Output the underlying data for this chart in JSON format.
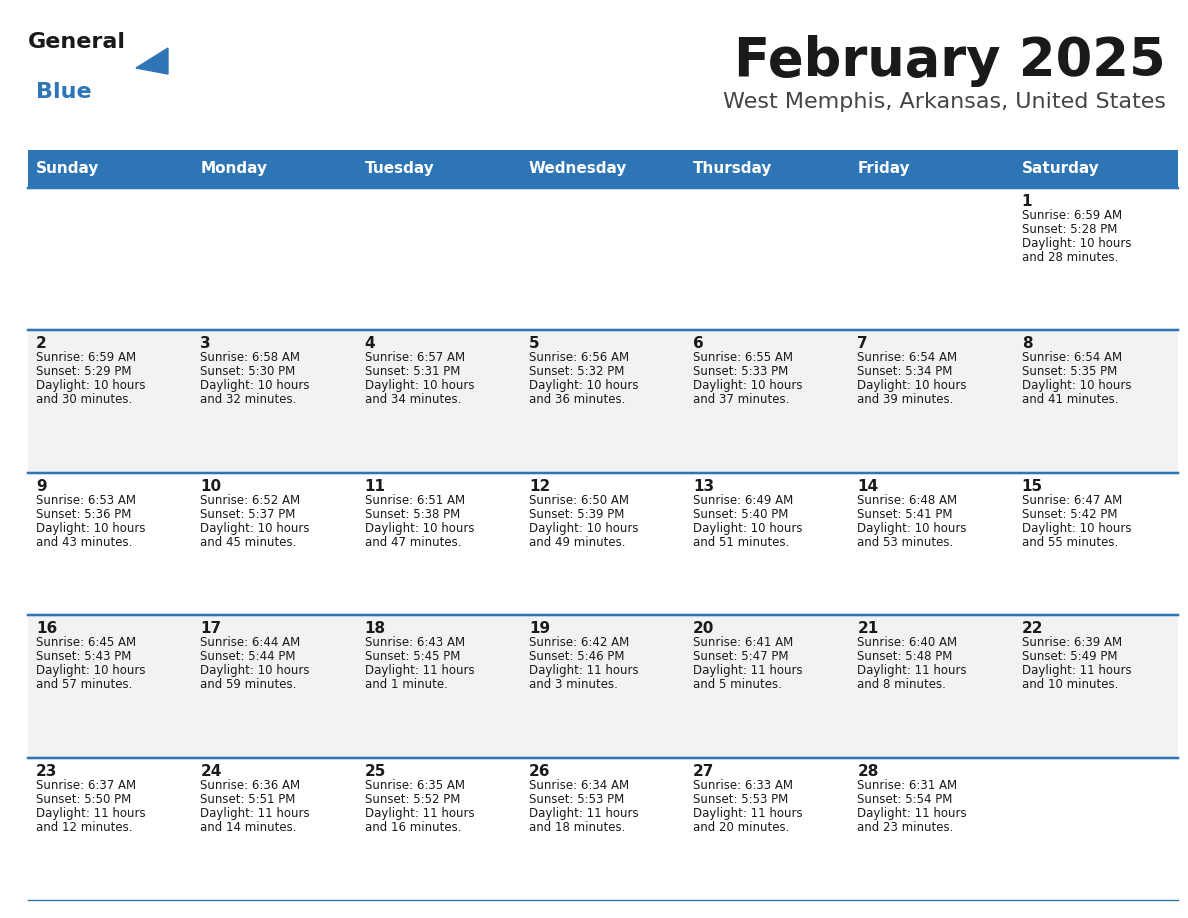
{
  "title": "February 2025",
  "subtitle": "West Memphis, Arkansas, United States",
  "header_color": "#2E75B6",
  "header_text_color": "#FFFFFF",
  "day_names": [
    "Sunday",
    "Monday",
    "Tuesday",
    "Wednesday",
    "Thursday",
    "Friday",
    "Saturday"
  ],
  "bg_color_odd": "#FFFFFF",
  "bg_color_even": "#F2F2F2",
  "line_color": "#2E75B6",
  "title_color": "#1a1a1a",
  "subtitle_color": "#444444",
  "day_number_color": "#1a1a1a",
  "text_color": "#1a1a1a",
  "logo_general_color": "#1a1a1a",
  "logo_blue_color": "#2E75B6",
  "logo_triangle_color": "#2E75B6",
  "calendar": [
    [
      null,
      null,
      null,
      null,
      null,
      null,
      {
        "day": "1",
        "sunrise": "6:59 AM",
        "sunset": "5:28 PM",
        "daylight": "10 hours",
        "daylight2": "and 28 minutes."
      }
    ],
    [
      {
        "day": "2",
        "sunrise": "6:59 AM",
        "sunset": "5:29 PM",
        "daylight": "10 hours",
        "daylight2": "and 30 minutes."
      },
      {
        "day": "3",
        "sunrise": "6:58 AM",
        "sunset": "5:30 PM",
        "daylight": "10 hours",
        "daylight2": "and 32 minutes."
      },
      {
        "day": "4",
        "sunrise": "6:57 AM",
        "sunset": "5:31 PM",
        "daylight": "10 hours",
        "daylight2": "and 34 minutes."
      },
      {
        "day": "5",
        "sunrise": "6:56 AM",
        "sunset": "5:32 PM",
        "daylight": "10 hours",
        "daylight2": "and 36 minutes."
      },
      {
        "day": "6",
        "sunrise": "6:55 AM",
        "sunset": "5:33 PM",
        "daylight": "10 hours",
        "daylight2": "and 37 minutes."
      },
      {
        "day": "7",
        "sunrise": "6:54 AM",
        "sunset": "5:34 PM",
        "daylight": "10 hours",
        "daylight2": "and 39 minutes."
      },
      {
        "day": "8",
        "sunrise": "6:54 AM",
        "sunset": "5:35 PM",
        "daylight": "10 hours",
        "daylight2": "and 41 minutes."
      }
    ],
    [
      {
        "day": "9",
        "sunrise": "6:53 AM",
        "sunset": "5:36 PM",
        "daylight": "10 hours",
        "daylight2": "and 43 minutes."
      },
      {
        "day": "10",
        "sunrise": "6:52 AM",
        "sunset": "5:37 PM",
        "daylight": "10 hours",
        "daylight2": "and 45 minutes."
      },
      {
        "day": "11",
        "sunrise": "6:51 AM",
        "sunset": "5:38 PM",
        "daylight": "10 hours",
        "daylight2": "and 47 minutes."
      },
      {
        "day": "12",
        "sunrise": "6:50 AM",
        "sunset": "5:39 PM",
        "daylight": "10 hours",
        "daylight2": "and 49 minutes."
      },
      {
        "day": "13",
        "sunrise": "6:49 AM",
        "sunset": "5:40 PM",
        "daylight": "10 hours",
        "daylight2": "and 51 minutes."
      },
      {
        "day": "14",
        "sunrise": "6:48 AM",
        "sunset": "5:41 PM",
        "daylight": "10 hours",
        "daylight2": "and 53 minutes."
      },
      {
        "day": "15",
        "sunrise": "6:47 AM",
        "sunset": "5:42 PM",
        "daylight": "10 hours",
        "daylight2": "and 55 minutes."
      }
    ],
    [
      {
        "day": "16",
        "sunrise": "6:45 AM",
        "sunset": "5:43 PM",
        "daylight": "10 hours",
        "daylight2": "and 57 minutes."
      },
      {
        "day": "17",
        "sunrise": "6:44 AM",
        "sunset": "5:44 PM",
        "daylight": "10 hours",
        "daylight2": "and 59 minutes."
      },
      {
        "day": "18",
        "sunrise": "6:43 AM",
        "sunset": "5:45 PM",
        "daylight": "11 hours",
        "daylight2": "and 1 minute."
      },
      {
        "day": "19",
        "sunrise": "6:42 AM",
        "sunset": "5:46 PM",
        "daylight": "11 hours",
        "daylight2": "and 3 minutes."
      },
      {
        "day": "20",
        "sunrise": "6:41 AM",
        "sunset": "5:47 PM",
        "daylight": "11 hours",
        "daylight2": "and 5 minutes."
      },
      {
        "day": "21",
        "sunrise": "6:40 AM",
        "sunset": "5:48 PM",
        "daylight": "11 hours",
        "daylight2": "and 8 minutes."
      },
      {
        "day": "22",
        "sunrise": "6:39 AM",
        "sunset": "5:49 PM",
        "daylight": "11 hours",
        "daylight2": "and 10 minutes."
      }
    ],
    [
      {
        "day": "23",
        "sunrise": "6:37 AM",
        "sunset": "5:50 PM",
        "daylight": "11 hours",
        "daylight2": "and 12 minutes."
      },
      {
        "day": "24",
        "sunrise": "6:36 AM",
        "sunset": "5:51 PM",
        "daylight": "11 hours",
        "daylight2": "and 14 minutes."
      },
      {
        "day": "25",
        "sunrise": "6:35 AM",
        "sunset": "5:52 PM",
        "daylight": "11 hours",
        "daylight2": "and 16 minutes."
      },
      {
        "day": "26",
        "sunrise": "6:34 AM",
        "sunset": "5:53 PM",
        "daylight": "11 hours",
        "daylight2": "and 18 minutes."
      },
      {
        "day": "27",
        "sunrise": "6:33 AM",
        "sunset": "5:53 PM",
        "daylight": "11 hours",
        "daylight2": "and 20 minutes."
      },
      {
        "day": "28",
        "sunrise": "6:31 AM",
        "sunset": "5:54 PM",
        "daylight": "11 hours",
        "daylight2": "and 23 minutes."
      },
      null
    ]
  ]
}
